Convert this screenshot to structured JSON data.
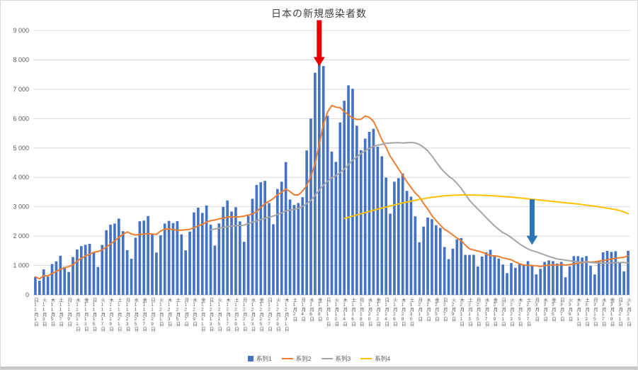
{
  "title": "日本の新規感染者数",
  "legend": [
    {
      "label": "系列1",
      "color": "#4472C4",
      "marker": "bar"
    },
    {
      "label": "系列2",
      "color": "#ED7D31",
      "marker": "line"
    },
    {
      "label": "系列3",
      "color": "#A5A5A5",
      "marker": "line"
    },
    {
      "label": "系列4",
      "color": "#FFC000",
      "marker": "line"
    }
  ],
  "annotations": [
    {
      "name": "red-down-arrow",
      "color": "#E60000",
      "index": 68,
      "from_value": 9350,
      "to_value": 7780
    },
    {
      "name": "blue-down-arrow",
      "color": "#2E75B6",
      "index": 119,
      "from_value": 3250,
      "to_value": 1700
    }
  ],
  "chart_data": {
    "type": "bar",
    "title": "日本の新規感染者数",
    "ylim": [
      0,
      9000
    ],
    "y_ticks": [
      "0",
      "1 000",
      "2 000",
      "3 000",
      "4 000",
      "5 000",
      "6 000",
      "7 000",
      "8 000",
      "9 000"
    ],
    "grid": true,
    "legend_position": "bottom",
    "x_tick_every": 2,
    "x_tick_labels": [
      "日11月1日",
      "火11月3日",
      "木11月5日",
      "土11月7日",
      "月11月9日",
      "水11月11日",
      "金11月13日",
      "日11月15日",
      "火11月17日",
      "木11月19日",
      "土11月21日",
      "月11月23日",
      "水11月25日",
      "金11月27日",
      "日11月29日",
      "火12月1日",
      "木12月3日",
      "土12月5日",
      "月12月7日",
      "水12月9日",
      "金12月11日",
      "日12月13日",
      "火12月15日",
      "木12月17日",
      "土12月19日",
      "月12月21日",
      "水12月23日",
      "金12月25日",
      "日12月27日",
      "火12月29日",
      "木12月31日",
      "土1月2日",
      "月1月4日",
      "水1月6日",
      "金1月8日",
      "日1月10日",
      "火1月12日",
      "木1月14日",
      "土1月16日",
      "月1月18日",
      "水1月20日",
      "金1月22日",
      "日1月24日",
      "火1月26日",
      "木1月28日",
      "土1月30日",
      "月2月1日",
      "水2月3日",
      "金2月5日",
      "日2月7日",
      "火2月9日",
      "木2月11日",
      "土2月13日",
      "月2月15日",
      "水2月17日",
      "金2月19日",
      "日2月21日",
      "火2月23日",
      "木2月25日",
      "土2月27日",
      "月3月1日",
      "水3月3日",
      "金3月5日",
      "日3月7日",
      "火3月9日",
      "木3月11日",
      "土3月13日",
      "月3月15日",
      "水3月17日",
      "金3月19日",
      "日3月21日",
      "火3月23日"
    ],
    "series": [
      {
        "name": "系列1",
        "type": "bar",
        "color": "#4472C4",
        "values": [
          614,
          482,
          867,
          620,
          1049,
          1141,
          1332,
          954,
          780,
          1287,
          1547,
          1660,
          1705,
          1738,
          1440,
          950,
          1699,
          2203,
          2388,
          2427,
          2596,
          2168,
          1521,
          1230,
          1946,
          2504,
          2529,
          2684,
          2066,
          1440,
          2030,
          2427,
          2518,
          2442,
          2508,
          2058,
          1516,
          2152,
          2810,
          2969,
          2790,
          3041,
          2388,
          1680,
          2432,
          2994,
          3211,
          2837,
          2982,
          2501,
          1806,
          2688,
          3271,
          3742,
          3832,
          3881,
          3127,
          2403,
          3604,
          3852,
          4520,
          3246,
          3059,
          3127,
          3325,
          4915,
          6001,
          7563,
          7882,
          7790,
          6097,
          4876,
          4527,
          5870,
          6607,
          7133,
          7014,
          5759,
          4925,
          5320,
          5549,
          5653,
          5045,
          4717,
          3990,
          2764,
          3853,
          3971,
          4133,
          3539,
          3344,
          2673,
          1791,
          2324,
          2632,
          2577,
          2372,
          2279,
          1630,
          1216,
          1570,
          1887,
          1934,
          1362,
          1361,
          1364,
          965,
          1305,
          1448,
          1536,
          1301,
          1234,
          1032,
          739,
          1083,
          921,
          1076,
          1022,
          1148,
          999,
          697,
          888,
          1121,
          1173,
          1148,
          1066,
          1121,
          599,
          972,
          1317,
          1316,
          1271,
          1320,
          989,
          695,
          1133,
          1449,
          1500,
          1463,
          1485,
          1121,
          798,
          1500
        ]
      },
      {
        "name": "系列2",
        "type": "line",
        "color": "#ED7D31",
        "values": [
          614,
          548,
          654,
          646,
          726,
          796,
          872,
          921,
          963,
          1023,
          1156,
          1243,
          1324,
          1382,
          1451,
          1475,
          1534,
          1628,
          1732,
          1835,
          1958,
          2062,
          2143,
          2076,
          2039,
          2056,
          2071,
          2083,
          2069,
          2057,
          2171,
          2240,
          2242,
          2230,
          2204,
          2203,
          2214,
          2232,
          2286,
          2351,
          2400,
          2477,
          2524,
          2547,
          2587,
          2613,
          2648,
          2655,
          2646,
          2662,
          2680,
          2717,
          2757,
          2832,
          2975,
          3103,
          3192,
          3278,
          3409,
          3492,
          3603,
          3519,
          3402,
          3402,
          3533,
          3721,
          4028,
          4462,
          5125,
          5800,
          6225,
          6446,
          6391,
          6372,
          6236,
          6129,
          6018,
          5969,
          5976,
          6090,
          6044,
          5908,
          5609,
          5281,
          5028,
          4720,
          4510,
          4285,
          4068,
          3852,
          3656,
          3468,
          3329,
          3111,
          2919,
          2697,
          2530,
          2378,
          2229,
          2147,
          2039,
          1933,
          1841,
          1697,
          1566,
          1528,
          1492,
          1454,
          1391,
          1334,
          1326,
          1308,
          1260,
          1228,
          1196,
          1121,
          1055,
          1015,
          1003,
          998,
          992,
          964,
          993,
          1007,
          1025,
          1013,
          1031,
          1017,
          1029,
          1057,
          1077,
          1095,
          1131,
          1112,
          1126,
          1149,
          1168,
          1194,
          1221,
          1245,
          1264,
          1278,
          1331
        ]
      },
      {
        "name": "系列3",
        "type": "line",
        "color": "#A5A5A5",
        "values": [
          null,
          null,
          null,
          null,
          null,
          null,
          null,
          null,
          null,
          null,
          null,
          null,
          null,
          null,
          null,
          null,
          null,
          null,
          null,
          null,
          null,
          null,
          null,
          null,
          null,
          null,
          null,
          null,
          null,
          null,
          null,
          null,
          null,
          null,
          null,
          null,
          null,
          null,
          null,
          null,
          null,
          null,
          2214,
          2240,
          2267,
          2295,
          2324,
          2339,
          2353,
          2365,
          2375,
          2427,
          2474,
          2518,
          2565,
          2608,
          2645,
          2680,
          2736,
          2787,
          2858,
          2887,
          2907,
          2945,
          3010,
          3108,
          3222,
          3386,
          3568,
          3738,
          3870,
          3984,
          4059,
          4162,
          4283,
          4437,
          4581,
          4697,
          4808,
          4902,
          4984,
          5052,
          5095,
          5125,
          5156,
          5169,
          5178,
          5182,
          5168,
          5179,
          5189,
          5173,
          5118,
          5025,
          4905,
          4727,
          4530,
          4333,
          4174,
          4043,
          3938,
          3795,
          3628,
          3422,
          3220,
          3063,
          2922,
          2779,
          2632,
          2485,
          2351,
          2227,
          2121,
          2049,
          1950,
          1841,
          1732,
          1642,
          1564,
          1504,
          1465,
          1414,
          1360,
          1309,
          1266,
          1222,
          1204,
          1182,
          1161,
          1140,
          1118,
          1115,
          1114,
          1100,
          1091,
          1084,
          1085,
          1083,
          1089,
          1098,
          1101,
          1103,
          1085
        ]
      },
      {
        "name": "系列4",
        "type": "line",
        "color": "#FFC000",
        "values": [
          null,
          null,
          null,
          null,
          null,
          null,
          null,
          null,
          null,
          null,
          null,
          null,
          null,
          null,
          null,
          null,
          null,
          null,
          null,
          null,
          null,
          null,
          null,
          null,
          null,
          null,
          null,
          null,
          null,
          null,
          null,
          null,
          null,
          null,
          null,
          null,
          null,
          null,
          null,
          null,
          null,
          null,
          null,
          null,
          null,
          null,
          null,
          null,
          null,
          null,
          null,
          null,
          null,
          null,
          null,
          null,
          null,
          null,
          null,
          null,
          null,
          null,
          null,
          null,
          null,
          null,
          null,
          null,
          null,
          null,
          null,
          null,
          null,
          null,
          2600,
          2640,
          2680,
          2720,
          2760,
          2800,
          2840,
          2880,
          2920,
          2955,
          2990,
          3025,
          3060,
          3095,
          3130,
          3160,
          3190,
          3220,
          3250,
          3275,
          3300,
          3320,
          3340,
          3355,
          3370,
          3380,
          3390,
          3395,
          3400,
          3400,
          3400,
          3398,
          3395,
          3390,
          3385,
          3378,
          3370,
          3360,
          3350,
          3340,
          3328,
          3315,
          3300,
          3285,
          3270,
          3255,
          3240,
          3225,
          3210,
          3195,
          3180,
          3165,
          3150,
          3135,
          3120,
          3105,
          3090,
          3072,
          3054,
          3036,
          3018,
          3000,
          2976,
          2952,
          2928,
          2904,
          2868,
          2820,
          2760
        ]
      }
    ]
  }
}
